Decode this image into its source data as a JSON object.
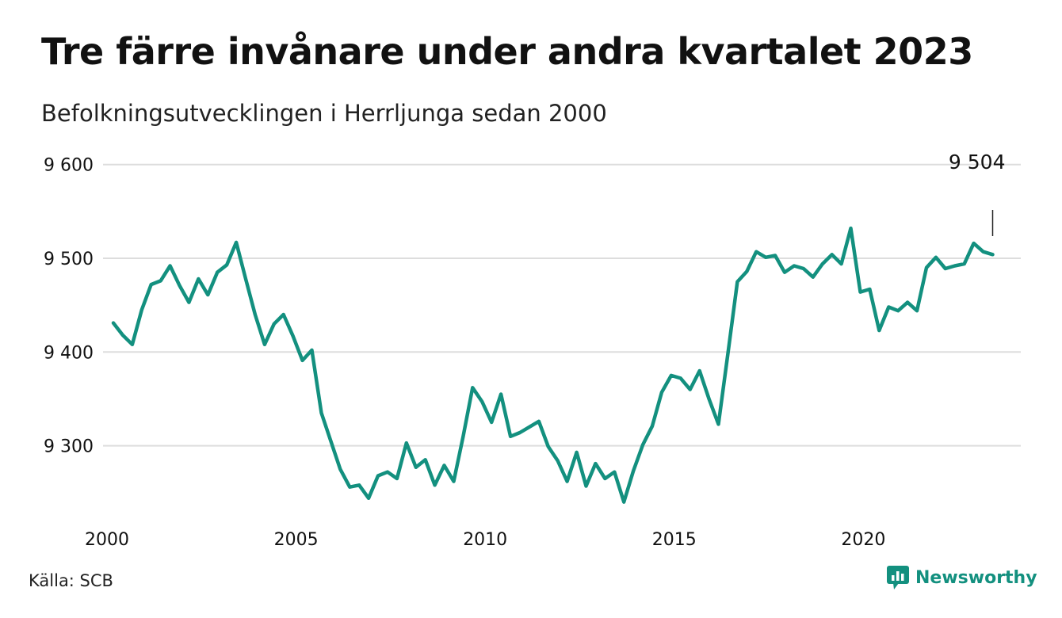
{
  "header": {
    "title": "Tre färre invånare under andra kvartalet 2023",
    "subtitle": "Befolkningsutvecklingen i Herrljunga sedan 2000"
  },
  "footer": {
    "source": "Källa: SCB",
    "brand": "Newsworthy"
  },
  "colors": {
    "line": "#13907f",
    "grid": "#dddddd",
    "brand": "#13907f"
  },
  "chart_data": {
    "type": "line",
    "title": "Tre färre invånare under andra kvartalet 2023",
    "subtitle": "Befolkningsutvecklingen i Herrljunga sedan 2000",
    "xlabel": "",
    "ylabel": "",
    "x_ticks": [
      "2000",
      "2005",
      "2010",
      "2015",
      "2020"
    ],
    "y_ticks": [
      "9 300",
      "9 400",
      "9 500",
      "9 600"
    ],
    "ylim": [
      9224,
      9640
    ],
    "grid": true,
    "annotation": {
      "label": "9 504",
      "x": "2023 Q2"
    },
    "x": [
      "2000 Q1",
      "2000 Q2",
      "2000 Q3",
      "2000 Q4",
      "2001 Q1",
      "2001 Q2",
      "2001 Q3",
      "2001 Q4",
      "2002 Q1",
      "2002 Q2",
      "2002 Q3",
      "2002 Q4",
      "2003 Q1",
      "2003 Q2",
      "2003 Q3",
      "2003 Q4",
      "2004 Q1",
      "2004 Q2",
      "2004 Q3",
      "2004 Q4",
      "2005 Q1",
      "2005 Q2",
      "2005 Q3",
      "2005 Q4",
      "2006 Q1",
      "2006 Q2",
      "2006 Q3",
      "2006 Q4",
      "2007 Q1",
      "2007 Q2",
      "2007 Q3",
      "2007 Q4",
      "2008 Q1",
      "2008 Q2",
      "2008 Q3",
      "2008 Q4",
      "2009 Q1",
      "2009 Q2",
      "2009 Q3",
      "2009 Q4",
      "2010 Q1",
      "2010 Q2",
      "2010 Q3",
      "2010 Q4",
      "2011 Q1",
      "2011 Q2",
      "2011 Q3",
      "2011 Q4",
      "2012 Q1",
      "2012 Q2",
      "2012 Q3",
      "2012 Q4",
      "2013 Q1",
      "2013 Q2",
      "2013 Q3",
      "2013 Q4",
      "2014 Q1",
      "2014 Q2",
      "2014 Q3",
      "2014 Q4",
      "2015 Q1",
      "2015 Q2",
      "2015 Q3",
      "2015 Q4",
      "2016 Q1",
      "2016 Q2",
      "2016 Q3",
      "2016 Q4",
      "2017 Q1",
      "2017 Q2",
      "2017 Q3",
      "2017 Q4",
      "2018 Q1",
      "2018 Q2",
      "2018 Q3",
      "2018 Q4",
      "2019 Q1",
      "2019 Q2",
      "2019 Q3",
      "2019 Q4",
      "2020 Q1",
      "2020 Q2",
      "2020 Q3",
      "2020 Q4",
      "2021 Q1",
      "2021 Q2",
      "2021 Q3",
      "2021 Q4",
      "2022 Q1",
      "2022 Q2",
      "2022 Q3",
      "2022 Q4",
      "2023 Q1",
      "2023 Q2"
    ],
    "series": [
      {
        "values": [
          9431,
          9418,
          9408,
          9445,
          9472,
          9476,
          9492,
          9471,
          9453,
          9478,
          9461,
          9485,
          9493,
          9517,
          9478,
          9440,
          9408,
          9430,
          9440,
          9417,
          9391,
          9402,
          9335,
          9305,
          9275,
          9256,
          9258,
          9244,
          9268,
          9272,
          9265,
          9303,
          9277,
          9285,
          9258,
          9279,
          9262,
          9310,
          9362,
          9347,
          9325,
          9355,
          9310,
          9314,
          9320,
          9326,
          9299,
          9284,
          9262,
          9293,
          9257,
          9281,
          9265,
          9272,
          9240,
          9273,
          9301,
          9321,
          9357,
          9375,
          9372,
          9360,
          9380,
          9350,
          9323,
          9398,
          9475,
          9486,
          9507,
          9501,
          9503,
          9485,
          9492,
          9489,
          9480,
          9494,
          9504,
          9494,
          9532,
          9464,
          9467,
          9423,
          9448,
          9444,
          9453,
          9444,
          9490,
          9501,
          9489,
          9492,
          9494,
          9516,
          9507,
          9504
        ]
      }
    ]
  }
}
